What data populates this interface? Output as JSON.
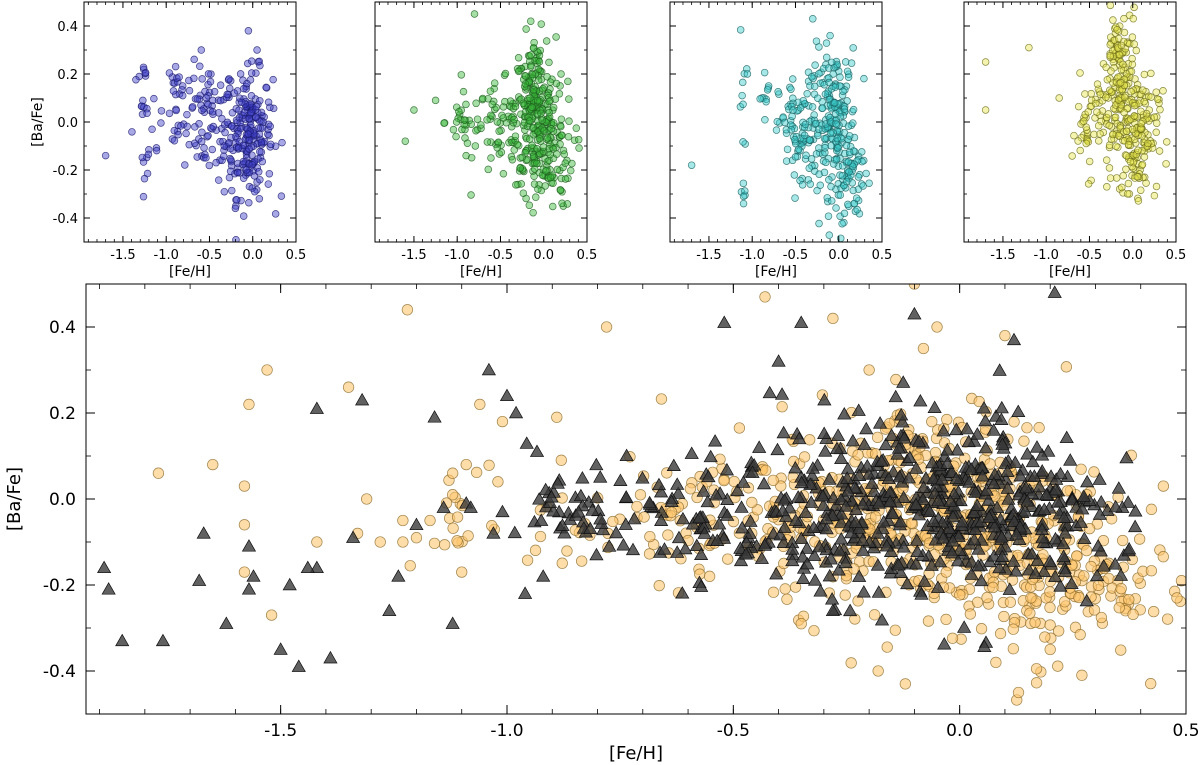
{
  "figure": {
    "chart_data": [
      {
        "type": "scatter",
        "panel": "top-1",
        "xlabel": "[Fe/H]",
        "ylabel": "[Ba/Fe]",
        "xlim": [
          -1.95,
          0.5
        ],
        "ylim": [
          -0.5,
          0.5
        ],
        "xticks": [
          "-1.5",
          "-1.0",
          "-0.5",
          "0.0",
          "0.5"
        ],
        "yticks": [
          "-0.4",
          "-0.2",
          "0.0",
          "0.2",
          "0.4"
        ],
        "grid": false,
        "series": [
          {
            "marker": "circle",
            "color": "#3f3fc8",
            "edge": "#1a1a6e",
            "clusters": [
              {
                "x": -1.25,
                "y": 0.2,
                "sx": 0.03,
                "sy": 0.02,
                "n": 6
              },
              {
                "x": -1.25,
                "y": 0.06,
                "sx": 0.03,
                "sy": 0.02,
                "n": 5
              },
              {
                "x": -1.25,
                "y": -0.18,
                "sx": 0.04,
                "sy": 0.05,
                "n": 8
              },
              {
                "x": -0.88,
                "y": 0.17,
                "sx": 0.03,
                "sy": 0.03,
                "n": 10
              },
              {
                "x": -0.88,
                "y": -0.06,
                "sx": 0.03,
                "sy": 0.03,
                "n": 6
              },
              {
                "x": -0.5,
                "y": 0.0,
                "sx": 0.15,
                "sy": 0.12,
                "n": 80
              },
              {
                "x": -0.05,
                "y": -0.05,
                "sx": 0.14,
                "sy": 0.13,
                "n": 220
              },
              {
                "x": -1.0,
                "y": 0.05,
                "sx": 0.25,
                "sy": 0.15,
                "n": 20
              }
            ],
            "points": [
              [
                -1.7,
                -0.14
              ],
              [
                -1.27,
                0.09
              ],
              [
                -0.05,
                0.38
              ],
              [
                0.05,
                0.3
              ],
              [
                -0.2,
                -0.36
              ]
            ]
          }
        ]
      },
      {
        "type": "scatter",
        "panel": "top-2",
        "xlabel": "[Fe/H]",
        "ylabel": "",
        "xlim": [
          -1.95,
          0.5
        ],
        "ylim": [
          -0.5,
          0.5
        ],
        "xticks": [
          "-1.5",
          "-1.0",
          "-0.5",
          "0.0",
          "0.5"
        ],
        "yticks": [],
        "grid": false,
        "series": [
          {
            "marker": "circle",
            "color": "#39b739",
            "edge": "#1e5e1e",
            "clusters": [
              {
                "x": -0.9,
                "y": 0.0,
                "sx": 0.12,
                "sy": 0.06,
                "n": 30
              },
              {
                "x": -0.5,
                "y": -0.05,
                "sx": 0.15,
                "sy": 0.1,
                "n": 60
              },
              {
                "x": -0.1,
                "y": 0.05,
                "sx": 0.12,
                "sy": 0.15,
                "n": 240
              },
              {
                "x": 0.05,
                "y": -0.12,
                "sx": 0.15,
                "sy": 0.12,
                "n": 100
              }
            ],
            "points": [
              [
                -1.6,
                -0.08
              ],
              [
                -1.25,
                0.09
              ],
              [
                -0.8,
                0.45
              ],
              [
                -1.5,
                0.05
              ],
              [
                -0.15,
                0.42
              ],
              [
                0.2,
                0.2
              ]
            ]
          }
        ]
      },
      {
        "type": "scatter",
        "panel": "top-3",
        "xlabel": "[Fe/H]",
        "ylabel": "",
        "xlim": [
          -1.95,
          0.5
        ],
        "ylim": [
          -0.5,
          0.5
        ],
        "xticks": [
          "-1.5",
          "-1.0",
          "-0.5",
          "0.0",
          "0.5"
        ],
        "yticks": [],
        "grid": false,
        "series": [
          {
            "marker": "circle",
            "color": "#3ac9c9",
            "edge": "#1a6060",
            "clusters": [
              {
                "x": -1.1,
                "y": 0.0,
                "sx": 0.02,
                "sy": 0.2,
                "n": 14
              },
              {
                "x": -0.85,
                "y": 0.1,
                "sx": 0.03,
                "sy": 0.06,
                "n": 10
              },
              {
                "x": -0.45,
                "y": -0.05,
                "sx": 0.12,
                "sy": 0.12,
                "n": 90
              },
              {
                "x": -0.05,
                "y": 0.0,
                "sx": 0.13,
                "sy": 0.15,
                "n": 200
              },
              {
                "x": 0.15,
                "y": -0.25,
                "sx": 0.1,
                "sy": 0.08,
                "n": 50
              }
            ],
            "points": [
              [
                -1.7,
                -0.18
              ],
              [
                -0.3,
                0.43
              ],
              [
                -0.1,
                0.36
              ],
              [
                -1.1,
                -0.34
              ],
              [
                -1.1,
                -0.31
              ]
            ]
          }
        ]
      },
      {
        "type": "scatter",
        "panel": "top-4",
        "xlabel": "[Fe/H]",
        "ylabel": "",
        "xlim": [
          -1.95,
          0.5
        ],
        "ylim": [
          -0.5,
          0.5
        ],
        "xticks": [
          "-1.5",
          "-1.0",
          "-0.5",
          "0.0",
          "0.5"
        ],
        "yticks": [],
        "grid": false,
        "series": [
          {
            "marker": "circle",
            "color": "#e6e64d",
            "edge": "#6b6b1a",
            "clusters": [
              {
                "x": -0.5,
                "y": -0.02,
                "sx": 0.1,
                "sy": 0.1,
                "n": 50
              },
              {
                "x": -0.15,
                "y": 0.15,
                "sx": 0.1,
                "sy": 0.18,
                "n": 180
              },
              {
                "x": 0.05,
                "y": -0.05,
                "sx": 0.12,
                "sy": 0.12,
                "n": 150
              }
            ],
            "points": [
              [
                -1.7,
                0.25
              ],
              [
                -1.7,
                0.05
              ],
              [
                -1.2,
                0.31
              ],
              [
                -0.85,
                0.1
              ],
              [
                -0.3,
                -0.27
              ],
              [
                0.35,
                0.13
              ]
            ]
          }
        ]
      },
      {
        "type": "scatter",
        "panel": "bottom",
        "xlabel": "[Fe/H]",
        "ylabel": "[Ba/Fe]",
        "xlim": [
          -1.93,
          0.5
        ],
        "ylim": [
          -0.5,
          0.5
        ],
        "xticks": [
          "-1.5",
          "-1.0",
          "-0.5",
          "0.0",
          "0.5"
        ],
        "yticks": [
          "-0.4",
          "-0.2",
          "0.0",
          "0.2",
          "0.4"
        ],
        "grid": false,
        "series": [
          {
            "marker": "circle",
            "color": "#ffc66e",
            "edge": "#8a6a2a",
            "clusters": [
              {
                "x": -0.55,
                "y": -0.05,
                "sx": 0.2,
                "sy": 0.07,
                "n": 140
              },
              {
                "x": -0.05,
                "y": -0.02,
                "sx": 0.18,
                "sy": 0.12,
                "n": 420
              },
              {
                "x": 0.15,
                "y": -0.2,
                "sx": 0.12,
                "sy": 0.09,
                "n": 120
              },
              {
                "x": -1.12,
                "y": -0.05,
                "sx": 0.02,
                "sy": 0.06,
                "n": 14
              },
              {
                "x": 0.3,
                "y": -0.2,
                "sx": 0.1,
                "sy": 0.05,
                "n": 40
              }
            ],
            "points": [
              [
                -1.77,
                0.06
              ],
              [
                -1.65,
                0.08
              ],
              [
                -1.58,
                0.03
              ],
              [
                -1.58,
                -0.06
              ],
              [
                -1.58,
                -0.17
              ],
              [
                -1.53,
                0.3
              ],
              [
                -1.57,
                0.22
              ],
              [
                -1.52,
                -0.27
              ],
              [
                -1.42,
                -0.1
              ],
              [
                -1.35,
                0.26
              ],
              [
                -1.33,
                -0.08
              ],
              [
                -1.31,
                0.0
              ],
              [
                -1.28,
                -0.1
              ],
              [
                -1.23,
                -0.05
              ],
              [
                -1.2,
                -0.09
              ],
              [
                -1.17,
                -0.05
              ],
              [
                -1.12,
                0.01
              ],
              [
                -1.09,
                0.08
              ],
              [
                -1.06,
                0.22
              ],
              [
                -1.02,
                0.04
              ],
              [
                -1.01,
                0.18
              ],
              [
                -0.89,
                0.19
              ],
              [
                -0.88,
                0.09
              ],
              [
                -1.22,
                0.44
              ],
              [
                -0.78,
                0.4
              ],
              [
                -0.43,
                0.47
              ],
              [
                -0.1,
                0.5
              ],
              [
                -0.18,
                -0.4
              ],
              [
                -0.12,
                -0.43
              ],
              [
                -0.03,
                -0.28
              ],
              [
                0.02,
                -0.15
              ],
              [
                0.08,
                -0.38
              ],
              [
                0.13,
                -0.45
              ],
              [
                0.2,
                -0.35
              ],
              [
                0.27,
                -0.41
              ],
              [
                0.48,
                -0.23
              ],
              [
                0.49,
                -0.19
              ],
              [
                0.45,
                0.03
              ],
              [
                -0.35,
                -0.29
              ],
              [
                -0.2,
                0.3
              ],
              [
                0.1,
                0.38
              ],
              [
                -0.05,
                0.4
              ],
              [
                -1.23,
                -0.1
              ],
              [
                -1.1,
                -0.17
              ],
              [
                -1.12,
                0.06
              ],
              [
                -0.28,
                0.42
              ],
              [
                -0.08,
                0.35
              ]
            ]
          },
          {
            "marker": "triangle",
            "color": "#3a3a3a",
            "edge": "#111111",
            "clusters": [
              {
                "x": -0.5,
                "y": -0.04,
                "sx": 0.22,
                "sy": 0.08,
                "n": 180
              },
              {
                "x": -0.05,
                "y": 0.0,
                "sx": 0.17,
                "sy": 0.11,
                "n": 360
              },
              {
                "x": 0.15,
                "y": -0.08,
                "sx": 0.14,
                "sy": 0.08,
                "n": 110
              },
              {
                "x": -0.85,
                "y": -0.02,
                "sx": 0.05,
                "sy": 0.06,
                "n": 20
              }
            ],
            "points": [
              [
                -1.89,
                -0.16
              ],
              [
                -1.88,
                -0.21
              ],
              [
                -1.85,
                -0.33
              ],
              [
                -1.76,
                -0.33
              ],
              [
                -1.67,
                -0.08
              ],
              [
                -1.68,
                -0.19
              ],
              [
                -1.62,
                -0.29
              ],
              [
                -1.57,
                -0.11
              ],
              [
                -1.57,
                -0.21
              ],
              [
                -1.56,
                -0.18
              ],
              [
                -1.5,
                -0.35
              ],
              [
                -1.48,
                -0.2
              ],
              [
                -1.46,
                -0.39
              ],
              [
                -1.42,
                -0.16
              ],
              [
                -1.42,
                0.21
              ],
              [
                -1.39,
                -0.37
              ],
              [
                -1.32,
                0.23
              ],
              [
                -1.26,
                -0.26
              ],
              [
                -1.24,
                -0.18
              ],
              [
                -1.16,
                0.19
              ],
              [
                -1.14,
                -0.02
              ],
              [
                -1.12,
                -0.29
              ],
              [
                -1.09,
                -0.01
              ],
              [
                -1.08,
                -0.02
              ],
              [
                -1.04,
                0.3
              ],
              [
                -1.03,
                -0.08
              ],
              [
                -1.01,
                -0.03
              ],
              [
                -1.0,
                0.24
              ],
              [
                -0.98,
                0.2
              ],
              [
                -0.96,
                -0.22
              ],
              [
                -0.92,
                -0.18
              ],
              [
                -1.2,
                -0.06
              ],
              [
                -1.34,
                -0.09
              ],
              [
                -1.44,
                -0.16
              ],
              [
                0.21,
                0.48
              ],
              [
                -0.1,
                0.43
              ],
              [
                0.12,
                0.37
              ],
              [
                -0.35,
                0.41
              ],
              [
                -0.52,
                0.41
              ],
              [
                -0.4,
                0.32
              ]
            ]
          }
        ]
      }
    ]
  }
}
